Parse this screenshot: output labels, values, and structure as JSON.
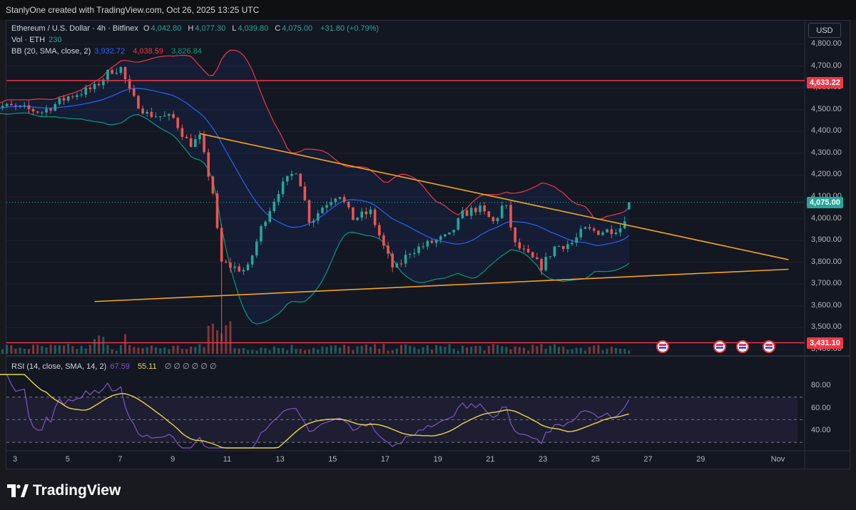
{
  "attribution": "StanlyOne created with TradingView.com, Oct 26, 2025 13:25 UTC",
  "legend": {
    "symbol": "Ethereum / U.S. Dollar · 4h · Bitfinex",
    "o_label": "O",
    "o": "4,042.80",
    "h_label": "H",
    "h": "4,077.30",
    "l_label": "L",
    "l": "4,039.80",
    "c_label": "C",
    "c": "4,075.00",
    "change": "+31.80 (+0.79%)",
    "vol_label": "Vol · ETH",
    "vol": "230",
    "bb_label": "BB (20, SMA, close, 2)",
    "bb_basis": "3,932.72",
    "bb_upper": "4,038.59",
    "bb_lower": "3,826.84",
    "rsi_label": "RSI (14, close, SMA, 14, 2)",
    "rsi": "67.59",
    "rsi_ma": "55.11",
    "rsi_extra": "∅ ∅ ∅ ∅ ∅ ∅"
  },
  "currency_button": "USD",
  "price_axis": [
    "4,800.00",
    "4,700.00",
    "4,600.00",
    "4,500.00",
    "4,400.00",
    "4,300.00",
    "4,200.00",
    "4,100.00",
    "4,000.00",
    "3,900.00",
    "3,800.00",
    "3,700.00",
    "3,600.00",
    "3,500.00",
    "3,400.00"
  ],
  "rsi_axis": [
    "80.00",
    "60.00",
    "40.00"
  ],
  "price_tags": {
    "resistance": "4,633.22",
    "last": "4,075.00",
    "support": "3,431.10"
  },
  "time_axis": [
    "3",
    "5",
    "7",
    "9",
    "11",
    "13",
    "15",
    "17",
    "19",
    "21",
    "23",
    "25",
    "27",
    "29",
    "Nov"
  ],
  "brand": "TradingView",
  "colors": {
    "background": "#131722",
    "bull": "#26a69a",
    "bear": "#ef5350",
    "horizontal_line": "#f23645",
    "trendline": "#f7a21b",
    "bb_basis": "#2962ff",
    "bb_upper": "#f23645",
    "bb_lower": "#089981",
    "rsi": "#7e57c2",
    "rsi_ma": "#e8d74a"
  },
  "chart_data": {
    "type": "candlestick",
    "interval": "4h",
    "y_range": [
      3400,
      4850
    ],
    "price_anchors": [
      [
        "Oct 2",
        4520
      ],
      [
        "Oct 3",
        4510
      ],
      [
        "Oct 4",
        4490
      ],
      [
        "Oct 5",
        4560
      ],
      [
        "Oct 6",
        4600
      ],
      [
        "Oct 6.6",
        4680
      ],
      [
        "Oct 7",
        4690
      ],
      [
        "Oct 7.4",
        4560
      ],
      [
        "Oct 8",
        4480
      ],
      [
        "Oct 9",
        4460
      ],
      [
        "Oct 9.6",
        4340
      ],
      [
        "Oct 10",
        4370
      ],
      [
        "Oct 10.5",
        4120
      ],
      [
        "Oct 10.8",
        3800
      ],
      [
        "Oct 11.2",
        3780
      ],
      [
        "Oct 11.8",
        3760
      ],
      [
        "Oct 12.4",
        3980
      ],
      [
        "Oct 13",
        4130
      ],
      [
        "Oct 13.7",
        4230
      ],
      [
        "Oct 14.2",
        3980
      ],
      [
        "Oct 14.7",
        4060
      ],
      [
        "Oct 15.3",
        4120
      ],
      [
        "Oct 15.8",
        4000
      ],
      [
        "Oct 16.5",
        4030
      ],
      [
        "Oct 17",
        3870
      ],
      [
        "Oct 17.4",
        3760
      ],
      [
        "Oct 18",
        3850
      ],
      [
        "Oct 19",
        3900
      ],
      [
        "Oct 19.5",
        3920
      ],
      [
        "Oct 20",
        4020
      ],
      [
        "Oct 20.6",
        4050
      ],
      [
        "Oct 21.2",
        3980
      ],
      [
        "Oct 21.6",
        4080
      ],
      [
        "Oct 22",
        3880
      ],
      [
        "Oct 22.6",
        3820
      ],
      [
        "Oct 23",
        3780
      ],
      [
        "Oct 23.5",
        3870
      ],
      [
        "Oct 24.2",
        3890
      ],
      [
        "Oct 24.6",
        3950
      ],
      [
        "Oct 25.2",
        3940
      ],
      [
        "Oct 25.7",
        3950
      ],
      [
        "Oct 26",
        3960
      ],
      [
        "Oct 26.4",
        4075
      ]
    ],
    "horizontal_lines": [
      4633.22,
      3431.1
    ],
    "trendlines": [
      {
        "from": [
          "Oct 10",
          4390
        ],
        "to": [
          "Nov 1.4",
          3812
        ]
      },
      {
        "from": [
          "Oct 6",
          3620
        ],
        "to": [
          "Nov 1.4",
          3768
        ]
      }
    ],
    "rsi_range": [
      25,
      90
    ],
    "rsi_levels": [
      70,
      50,
      30
    ]
  }
}
